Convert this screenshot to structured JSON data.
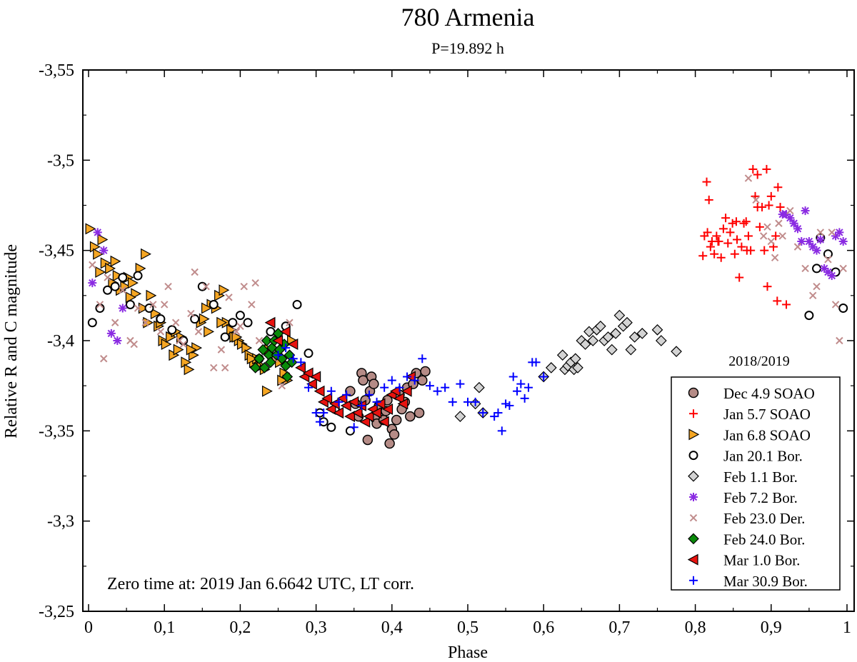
{
  "chart_data": {
    "type": "scatter",
    "title": "780 Armenia",
    "subtitle": "P=19.892 h",
    "xlabel": "Phase",
    "ylabel": "Relative R and C magnitude",
    "xlim": [
      0,
      1
    ],
    "ylim": [
      -3.25,
      -3.55
    ],
    "y_inverted": true,
    "x_ticks": [
      {
        "value": 0,
        "label": "0"
      },
      {
        "value": 0.1,
        "label": "0,1"
      },
      {
        "value": 0.2,
        "label": "0,2"
      },
      {
        "value": 0.3,
        "label": "0,3"
      },
      {
        "value": 0.4,
        "label": "0,4"
      },
      {
        "value": 0.5,
        "label": "0,5"
      },
      {
        "value": 0.6,
        "label": "0,6"
      },
      {
        "value": 0.7,
        "label": "0,7"
      },
      {
        "value": 0.8,
        "label": "0,8"
      },
      {
        "value": 0.9,
        "label": "0,9"
      },
      {
        "value": 1,
        "label": "1"
      }
    ],
    "y_ticks": [
      {
        "value": -3.55,
        "label": "-3,55"
      },
      {
        "value": -3.5,
        "label": "-3,5"
      },
      {
        "value": -3.45,
        "label": "-3,45"
      },
      {
        "value": -3.4,
        "label": "-3,4"
      },
      {
        "value": -3.35,
        "label": "-3,35"
      },
      {
        "value": -3.3,
        "label": "-3,3"
      },
      {
        "value": -3.25,
        "label": "-3,25"
      }
    ],
    "annotation": "Zero time at: 2019 Jan 6.6642 UTC, LT corr.",
    "legend_title": "2018/2019",
    "legend_position": "bottom-right",
    "series": [
      {
        "name": "Dec 4.9 SOAO",
        "marker": "circle",
        "color": "#b58b86",
        "x": [
          0.345,
          0.352,
          0.356,
          0.36,
          0.362,
          0.365,
          0.368,
          0.371,
          0.373,
          0.376,
          0.378,
          0.38,
          0.383,
          0.386,
          0.389,
          0.392,
          0.394,
          0.397,
          0.4,
          0.403,
          0.406,
          0.41,
          0.413,
          0.417,
          0.42,
          0.424,
          0.428,
          0.432,
          0.436,
          0.44,
          0.444
        ],
        "y": [
          -3.372,
          -3.365,
          -3.358,
          -3.382,
          -3.378,
          -3.367,
          -3.345,
          -3.372,
          -3.38,
          -3.376,
          -3.357,
          -3.354,
          -3.364,
          -3.36,
          -3.356,
          -3.361,
          -3.367,
          -3.343,
          -3.351,
          -3.348,
          -3.356,
          -3.37,
          -3.362,
          -3.366,
          -3.374,
          -3.358,
          -3.376,
          -3.382,
          -3.36,
          -3.378,
          -3.383
        ]
      },
      {
        "name": "Jan 5.7 SOAO",
        "marker": "plus",
        "color": "#ff0000",
        "x": [
          0.81,
          0.812,
          0.815,
          0.818,
          0.82,
          0.822,
          0.825,
          0.828,
          0.831,
          0.834,
          0.837,
          0.84,
          0.843,
          0.846,
          0.849,
          0.852,
          0.855,
          0.858,
          0.861,
          0.864,
          0.867,
          0.87,
          0.873,
          0.876,
          0.879,
          0.882,
          0.885,
          0.888,
          0.891,
          0.894,
          0.897,
          0.9,
          0.903,
          0.906,
          0.909,
          0.912,
          0.816,
          0.83,
          0.854,
          0.868,
          0.882,
          0.895,
          0.908,
          0.92
        ],
        "y": [
          -3.447,
          -3.458,
          -3.488,
          -3.478,
          -3.452,
          -3.455,
          -3.448,
          -3.458,
          -3.455,
          -3.446,
          -3.462,
          -3.468,
          -3.454,
          -3.46,
          -3.465,
          -3.448,
          -3.456,
          -3.435,
          -3.452,
          -3.465,
          -3.466,
          -3.458,
          -3.45,
          -3.495,
          -3.48,
          -3.474,
          -3.463,
          -3.474,
          -3.45,
          -3.495,
          -3.475,
          -3.48,
          -3.452,
          -3.458,
          -3.485,
          -3.474,
          -3.46,
          -3.455,
          -3.466,
          -3.45,
          -3.492,
          -3.43,
          -3.422,
          -3.42
        ]
      },
      {
        "name": "Jan 6.8 SOAO",
        "marker": "triangle-right",
        "color": "#f5a623",
        "x": [
          0.002,
          0.008,
          0.012,
          0.018,
          0.022,
          0.028,
          0.032,
          0.038,
          0.042,
          0.048,
          0.052,
          0.058,
          0.062,
          0.068,
          0.072,
          0.078,
          0.082,
          0.088,
          0.092,
          0.098,
          0.102,
          0.108,
          0.112,
          0.118,
          0.122,
          0.128,
          0.132,
          0.138,
          0.142,
          0.148,
          0.152,
          0.158,
          0.162,
          0.168,
          0.172,
          0.178,
          0.182,
          0.188,
          0.192,
          0.198,
          0.202,
          0.208,
          0.212,
          0.218,
          0.222,
          0.228,
          0.232,
          0.238,
          0.242,
          0.248,
          0.252,
          0.258,
          0.262,
          0.268,
          0.015,
          0.035,
          0.055,
          0.075,
          0.095,
          0.115,
          0.135,
          0.155,
          0.175,
          0.195,
          0.215,
          0.235,
          0.255
        ],
        "y": [
          -3.462,
          -3.452,
          -3.448,
          -3.456,
          -3.443,
          -3.44,
          -3.432,
          -3.436,
          -3.428,
          -3.43,
          -3.435,
          -3.432,
          -3.426,
          -3.44,
          -3.418,
          -3.41,
          -3.425,
          -3.415,
          -3.408,
          -3.4,
          -3.398,
          -3.402,
          -3.392,
          -3.395,
          -3.402,
          -3.388,
          -3.384,
          -3.392,
          -3.396,
          -3.41,
          -3.412,
          -3.405,
          -3.42,
          -3.418,
          -3.425,
          -3.428,
          -3.41,
          -3.406,
          -3.402,
          -3.4,
          -3.398,
          -3.396,
          -3.392,
          -3.388,
          -3.39,
          -3.386,
          -3.384,
          -3.395,
          -3.392,
          -3.39,
          -3.388,
          -3.382,
          -3.378,
          -3.4,
          -3.438,
          -3.444,
          -3.424,
          -3.448,
          -3.41,
          -3.405,
          -3.395,
          -3.418,
          -3.41,
          -3.402,
          -3.39,
          -3.372,
          -3.378
        ]
      },
      {
        "name": "Jan 20.1 Bor.",
        "marker": "circle-open",
        "color": "#000000",
        "x": [
          0.005,
          0.015,
          0.025,
          0.035,
          0.045,
          0.055,
          0.065,
          0.08,
          0.095,
          0.11,
          0.125,
          0.14,
          0.15,
          0.165,
          0.18,
          0.19,
          0.2,
          0.21,
          0.225,
          0.24,
          0.26,
          0.275,
          0.29,
          0.305,
          0.31,
          0.32,
          0.325,
          0.345,
          0.95,
          0.96,
          0.965,
          0.975,
          0.985,
          0.995
        ],
        "y": [
          -3.41,
          -3.418,
          -3.428,
          -3.43,
          -3.435,
          -3.42,
          -3.436,
          -3.418,
          -3.412,
          -3.406,
          -3.4,
          -3.412,
          -3.43,
          -3.42,
          -3.402,
          -3.41,
          -3.414,
          -3.41,
          -3.39,
          -3.405,
          -3.408,
          -3.42,
          -3.393,
          -3.36,
          -3.355,
          -3.352,
          -3.362,
          -3.35,
          -3.414,
          -3.44,
          -3.457,
          -3.448,
          -3.438,
          -3.418
        ]
      },
      {
        "name": "Feb 1.1 Bor.",
        "marker": "diamond",
        "color": "#d3d3d3",
        "x": [
          0.49,
          0.51,
          0.515,
          0.52,
          0.6,
          0.61,
          0.625,
          0.628,
          0.632,
          0.636,
          0.64,
          0.642,
          0.645,
          0.65,
          0.655,
          0.66,
          0.665,
          0.67,
          0.675,
          0.68,
          0.685,
          0.69,
          0.695,
          0.7,
          0.705,
          0.71,
          0.715,
          0.72,
          0.73,
          0.75,
          0.755,
          0.775
        ],
        "y": [
          -3.358,
          -3.365,
          -3.374,
          -3.36,
          -3.38,
          -3.385,
          -3.392,
          -3.384,
          -3.386,
          -3.388,
          -3.384,
          -3.39,
          -3.385,
          -3.4,
          -3.398,
          -3.405,
          -3.4,
          -3.406,
          -3.408,
          -3.4,
          -3.402,
          -3.395,
          -3.404,
          -3.414,
          -3.408,
          -3.41,
          -3.395,
          -3.402,
          -3.404,
          -3.406,
          -3.4,
          -3.394
        ]
      },
      {
        "name": "Feb 7.2 Bor.",
        "marker": "star",
        "color": "#8a2be2",
        "x": [
          0.005,
          0.012,
          0.02,
          0.03,
          0.038,
          0.045,
          0.915,
          0.92,
          0.925,
          0.93,
          0.935,
          0.94,
          0.945,
          0.95,
          0.955,
          0.96,
          0.965,
          0.97,
          0.975,
          0.98,
          0.985,
          0.99,
          0.995
        ],
        "y": [
          -3.432,
          -3.46,
          -3.45,
          -3.404,
          -3.4,
          -3.418,
          -3.47,
          -3.47,
          -3.468,
          -3.465,
          -3.462,
          -3.455,
          -3.472,
          -3.455,
          -3.452,
          -3.45,
          -3.456,
          -3.44,
          -3.438,
          -3.436,
          -3.458,
          -3.46,
          -3.455
        ]
      },
      {
        "name": "Feb 23.0 Der.",
        "marker": "x",
        "color": "#c08c8c",
        "x": [
          0.005,
          0.015,
          0.025,
          0.035,
          0.045,
          0.055,
          0.065,
          0.075,
          0.085,
          0.095,
          0.105,
          0.115,
          0.125,
          0.135,
          0.145,
          0.155,
          0.165,
          0.175,
          0.185,
          0.195,
          0.205,
          0.215,
          0.225,
          0.235,
          0.245,
          0.255,
          0.265,
          0.06,
          0.1,
          0.14,
          0.18,
          0.22,
          0.02,
          0.12,
          0.2,
          0.89,
          0.895,
          0.9,
          0.905,
          0.91,
          0.915,
          0.925,
          0.935,
          0.945,
          0.955,
          0.965,
          0.975,
          0.985,
          0.995,
          0.87,
          0.88,
          0.96,
          0.99,
          0.98
        ],
        "y": [
          -3.442,
          -3.42,
          -3.435,
          -3.41,
          -3.428,
          -3.4,
          -3.418,
          -3.41,
          -3.42,
          -3.405,
          -3.43,
          -3.41,
          -3.398,
          -3.415,
          -3.405,
          -3.43,
          -3.385,
          -3.395,
          -3.424,
          -3.405,
          -3.43,
          -3.42,
          -3.4,
          -3.395,
          -3.39,
          -3.375,
          -3.41,
          -3.398,
          -3.42,
          -3.438,
          -3.385,
          -3.432,
          -3.39,
          -3.4,
          -3.408,
          -3.458,
          -3.463,
          -3.455,
          -3.446,
          -3.465,
          -3.458,
          -3.472,
          -3.452,
          -3.44,
          -3.425,
          -3.46,
          -3.445,
          -3.42,
          -3.44,
          -3.49,
          -3.478,
          -3.43,
          -3.4,
          -3.46
        ]
      },
      {
        "name": "Feb 24.0 Bor.",
        "marker": "diamond-filled",
        "color": "#0a8a0a",
        "x": [
          0.22,
          0.225,
          0.23,
          0.232,
          0.235,
          0.238,
          0.24,
          0.242,
          0.245,
          0.248,
          0.25,
          0.252,
          0.255,
          0.258,
          0.26,
          0.262,
          0.265,
          0.268
        ],
        "y": [
          -3.385,
          -3.39,
          -3.395,
          -3.385,
          -3.4,
          -3.392,
          -3.388,
          -3.396,
          -3.4,
          -3.392,
          -3.404,
          -3.395,
          -3.39,
          -3.398,
          -3.386,
          -3.38,
          -3.392,
          -3.388
        ]
      },
      {
        "name": "Mar 1.0 Bor.",
        "marker": "triangle-left",
        "color": "#e8130f",
        "x": [
          0.24,
          0.25,
          0.26,
          0.27,
          0.28,
          0.285,
          0.29,
          0.295,
          0.3,
          0.305,
          0.31,
          0.315,
          0.32,
          0.325,
          0.33,
          0.335,
          0.34,
          0.345,
          0.35,
          0.355,
          0.36,
          0.365,
          0.37,
          0.375,
          0.38,
          0.385,
          0.39,
          0.395,
          0.4,
          0.405,
          0.41,
          0.415,
          0.42,
          0.425
        ],
        "y": [
          -3.41,
          -3.4,
          -3.405,
          -3.398,
          -3.385,
          -3.38,
          -3.382,
          -3.376,
          -3.38,
          -3.372,
          -3.366,
          -3.368,
          -3.362,
          -3.365,
          -3.36,
          -3.368,
          -3.364,
          -3.358,
          -3.366,
          -3.36,
          -3.364,
          -3.355,
          -3.358,
          -3.362,
          -3.36,
          -3.365,
          -3.355,
          -3.362,
          -3.37,
          -3.372,
          -3.368,
          -3.365,
          -3.372,
          -3.38
        ]
      },
      {
        "name": "Mar 30.9 Bor.",
        "marker": "plus",
        "color": "#0000ff",
        "x": [
          0.25,
          0.26,
          0.27,
          0.28,
          0.29,
          0.3,
          0.305,
          0.31,
          0.32,
          0.33,
          0.34,
          0.35,
          0.36,
          0.37,
          0.38,
          0.39,
          0.4,
          0.41,
          0.42,
          0.43,
          0.44,
          0.45,
          0.46,
          0.47,
          0.48,
          0.49,
          0.5,
          0.51,
          0.52,
          0.535,
          0.54,
          0.545,
          0.55,
          0.555,
          0.56,
          0.565,
          0.57,
          0.575,
          0.58,
          0.585,
          0.59,
          0.6
        ],
        "y": [
          -3.392,
          -3.396,
          -3.39,
          -3.388,
          -3.374,
          -3.36,
          -3.355,
          -3.36,
          -3.372,
          -3.366,
          -3.37,
          -3.352,
          -3.364,
          -3.37,
          -3.366,
          -3.374,
          -3.378,
          -3.374,
          -3.38,
          -3.378,
          -3.39,
          -3.375,
          -3.372,
          -3.374,
          -3.366,
          -3.376,
          -3.366,
          -3.366,
          -3.36,
          -3.358,
          -3.36,
          -3.35,
          -3.365,
          -3.364,
          -3.38,
          -3.372,
          -3.376,
          -3.368,
          -3.374,
          -3.388,
          -3.388,
          -3.38
        ]
      }
    ]
  }
}
